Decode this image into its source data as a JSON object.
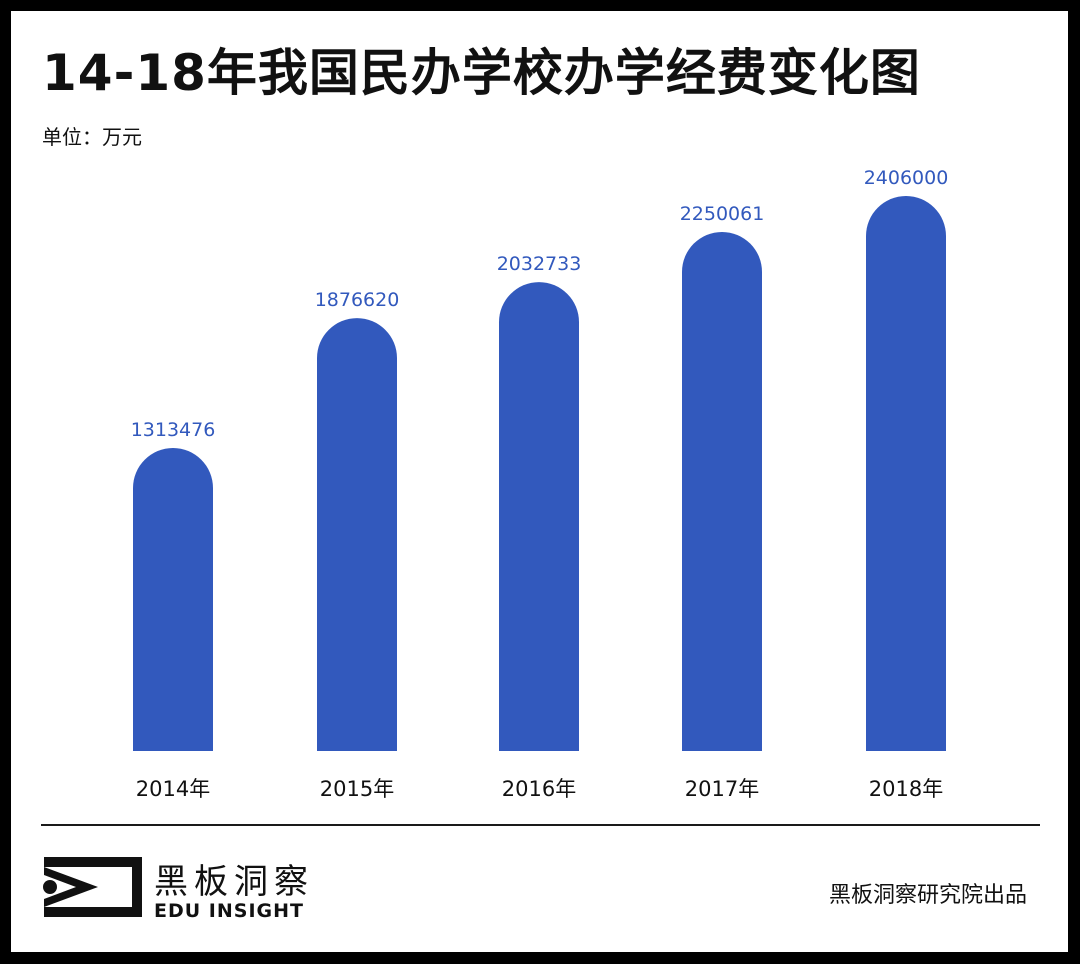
{
  "title": "14-18年我国民办学校办学经费变化图",
  "unit_label": "单位：万元",
  "chart_data": {
    "type": "bar",
    "categories": [
      "2014年",
      "2015年",
      "2016年",
      "2017年",
      "2018年"
    ],
    "values": [
      1313476,
      1876620,
      2032733,
      2250061,
      2406000
    ],
    "data_labels": [
      "1313476",
      "1876620",
      "2032733",
      "2250061",
      "2406000"
    ],
    "bar_color": "#3259BD",
    "label_color": "#3259BD",
    "grid": false,
    "legend": "none"
  },
  "brand": {
    "name_cn": "黑板洞察",
    "name_en": "EDU INSIGHT",
    "logo_icon": "eye-frame-icon"
  },
  "credit": "黑板洞察研究院出品"
}
